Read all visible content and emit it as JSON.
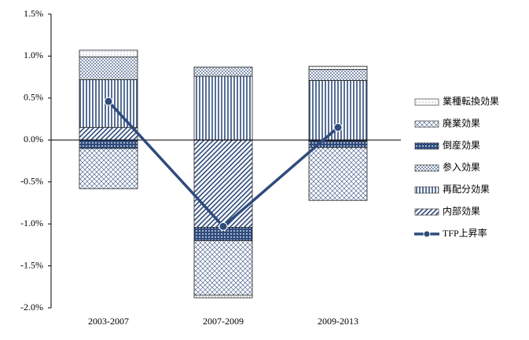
{
  "chart_data": {
    "type": "bar",
    "categories": [
      "2003-2007",
      "2007-2009",
      "2009-2013"
    ],
    "ylim": [
      -2.0,
      1.5
    ],
    "yticks": [
      {
        "value": -2.0,
        "label": "-2.0%"
      },
      {
        "value": -1.5,
        "label": "-1.5%"
      },
      {
        "value": -1.0,
        "label": "-1.0%"
      },
      {
        "value": -0.5,
        "label": "-0.5%"
      },
      {
        "value": 0.0,
        "label": "0.0%"
      },
      {
        "value": 0.5,
        "label": "0.5%"
      },
      {
        "value": 1.0,
        "label": "1.0%"
      },
      {
        "value": 1.5,
        "label": "1.5%"
      }
    ],
    "stacked": true,
    "legend": "right",
    "series": [
      {
        "name": "業種転換効果",
        "type": "bar",
        "pattern": "finedots",
        "color": "#2f4b7c",
        "values": [
          0.08,
          -0.03,
          0.04
        ]
      },
      {
        "name": "廃業効果",
        "type": "bar",
        "pattern": "cross",
        "color": "#2f4b7c",
        "values": [
          -0.48,
          -0.65,
          -0.63
        ]
      },
      {
        "name": "倒産効果",
        "type": "bar",
        "pattern": "grid",
        "color": "#2f4b7c",
        "values": [
          -0.1,
          -0.16,
          -0.08
        ]
      },
      {
        "name": "参入効果",
        "type": "bar",
        "pattern": "dots",
        "color": "#2f4b7c",
        "values": [
          0.27,
          0.11,
          0.13
        ]
      },
      {
        "name": "再配分効果",
        "type": "bar",
        "pattern": "vlines",
        "color": "#2f4b7c",
        "values": [
          0.57,
          0.76,
          0.71
        ]
      },
      {
        "name": "内部効果",
        "type": "bar",
        "pattern": "diag",
        "color": "#2f4b7c",
        "values": [
          0.15,
          -1.04,
          -0.01
        ]
      },
      {
        "name": "TFP上昇率",
        "type": "line",
        "color": "#2f4b7c",
        "values": [
          0.46,
          -1.03,
          0.15
        ]
      }
    ]
  }
}
